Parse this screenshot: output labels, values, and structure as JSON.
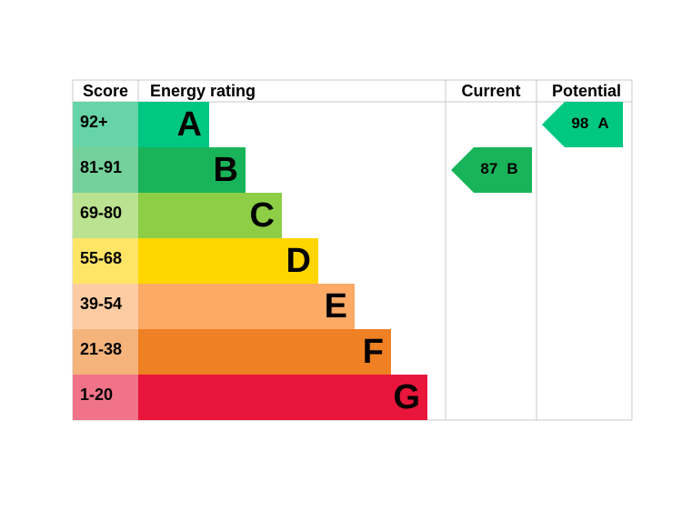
{
  "header": {
    "score": "Score",
    "rating": "Energy rating",
    "current": "Current",
    "potential": "Potential"
  },
  "bands": [
    {
      "score": "92+",
      "letter": "A",
      "color": "#00c781",
      "light": "#66d4a6"
    },
    {
      "score": "81-91",
      "letter": "B",
      "color": "#19b459",
      "light": "#75d19b"
    },
    {
      "score": "69-80",
      "letter": "C",
      "color": "#8dce46",
      "light": "#bbe290"
    },
    {
      "score": "55-68",
      "letter": "D",
      "color": "#ffd500",
      "light": "#ffe566"
    },
    {
      "score": "39-54",
      "letter": "E",
      "color": "#fcaa65",
      "light": "#fdcca3"
    },
    {
      "score": "21-38",
      "letter": "F",
      "color": "#ef8023",
      "light": "#f5b37b"
    },
    {
      "score": "1-20",
      "letter": "G",
      "color": "#e9153b",
      "light": "#f07389"
    }
  ],
  "current": {
    "value": 87,
    "letter": "B"
  },
  "potential": {
    "value": 98,
    "letter": "A"
  }
}
